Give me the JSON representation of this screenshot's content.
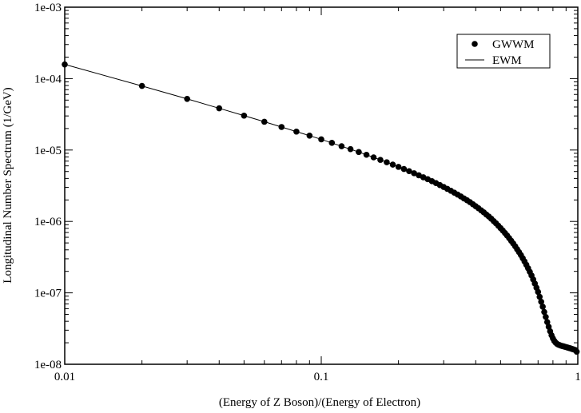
{
  "chart_data": {
    "type": "scatter",
    "title": "",
    "xlabel": "(Energy of Z Boson)/(Energy of Electron)",
    "ylabel": "Longitudinal Number Spectrum (1/GeV)",
    "xscale": "log",
    "yscale": "log",
    "xlim": [
      0.01,
      1
    ],
    "ylim": [
      1e-08,
      0.001
    ],
    "x_ticks": [
      {
        "value": 0.01,
        "label": "0.01"
      },
      {
        "value": 0.1,
        "label": "0.1"
      },
      {
        "value": 1,
        "label": "1"
      }
    ],
    "y_ticks": [
      {
        "value": 1e-08,
        "label": "1e-08"
      },
      {
        "value": 1e-07,
        "label": "1e-07"
      },
      {
        "value": 1e-06,
        "label": "1e-06"
      },
      {
        "value": 1e-05,
        "label": "1e-05"
      },
      {
        "value": 0.0001,
        "label": "1e-04"
      },
      {
        "value": 0.001,
        "label": "1e-03"
      }
    ],
    "grid": false,
    "legend_position": "top-right",
    "series": [
      {
        "name": "GWWM",
        "style": "markers",
        "marker": "filled-circle",
        "color": "#000000",
        "x": [
          0.01,
          0.02,
          0.03,
          0.04,
          0.05,
          0.06,
          0.07,
          0.08,
          0.09,
          0.1,
          0.11,
          0.12,
          0.13,
          0.14,
          0.15,
          0.16,
          0.17,
          0.18,
          0.19,
          0.2,
          0.21,
          0.22,
          0.23,
          0.24,
          0.25,
          0.26,
          0.27,
          0.28,
          0.29,
          0.3,
          0.31,
          0.32,
          0.33,
          0.34,
          0.35,
          0.36,
          0.37,
          0.38,
          0.39,
          0.4,
          0.41,
          0.42,
          0.43,
          0.44,
          0.45,
          0.46,
          0.47,
          0.48,
          0.49,
          0.5,
          0.51,
          0.52,
          0.53,
          0.54,
          0.55,
          0.56,
          0.57,
          0.58,
          0.59,
          0.6,
          0.61,
          0.62,
          0.63,
          0.64,
          0.65,
          0.66,
          0.67,
          0.68,
          0.69,
          0.7,
          0.71,
          0.72,
          0.73,
          0.74,
          0.75,
          0.76,
          0.77,
          0.78,
          0.79,
          0.8,
          0.81,
          0.82,
          0.83,
          0.84,
          0.85,
          0.86,
          0.87,
          0.88,
          0.89,
          0.9,
          0.91,
          0.92,
          0.93,
          0.94,
          0.95,
          0.96,
          0.97,
          0.98,
          0.99
        ],
        "y": [
          0.000158,
          7.89e-05,
          5.2e-05,
          3.84e-05,
          3.03e-05,
          2.49e-05,
          2.1e-05,
          1.81e-05,
          1.59e-05,
          1.41e-05,
          1.26e-05,
          1.13e-05,
          1.03e-05,
          9.37e-06,
          8.58e-06,
          7.89e-06,
          7.28e-06,
          6.74e-06,
          6.25e-06,
          5.81e-06,
          5.42e-06,
          5.06e-06,
          4.73e-06,
          4.43e-06,
          4.15e-06,
          3.9e-06,
          3.66e-06,
          3.44e-06,
          3.23e-06,
          3.04e-06,
          2.86e-06,
          2.69e-06,
          2.53e-06,
          2.38e-06,
          2.24e-06,
          2.1e-06,
          1.98e-06,
          1.86e-06,
          1.74e-06,
          1.63e-06,
          1.53e-06,
          1.43e-06,
          1.34e-06,
          1.25e-06,
          1.17e-06,
          1.09e-06,
          1.01e-06,
          9.4e-07,
          8.72e-07,
          8.07e-07,
          7.46e-07,
          6.89e-07,
          6.35e-07,
          5.84e-07,
          5.36e-07,
          4.91e-07,
          4.49e-07,
          4.09e-07,
          3.72e-07,
          3.38e-07,
          3.05e-07,
          2.75e-07,
          2.47e-07,
          2.21e-07,
          1.97e-07,
          1.75e-07,
          1.54e-07,
          1.35e-07,
          1.18e-07,
          1.03e-07,
          8.8e-08,
          7.5e-08,
          6.4e-08,
          5.4e-08,
          4.6e-08,
          3.9e-08,
          3.35e-08,
          2.9e-08,
          2.55e-08,
          2.3e-08,
          2.12e-08,
          2.01e-08,
          1.93e-08,
          1.88e-08,
          1.85e-08,
          1.82e-08,
          1.8e-08,
          1.78e-08,
          1.76e-08,
          1.74e-08,
          1.72e-08,
          1.7e-08,
          1.68e-08,
          1.66e-08,
          1.64e-08,
          1.62e-08,
          1.6e-08,
          1.58e-08,
          1.5e-08
        ]
      },
      {
        "name": "EWM",
        "style": "line",
        "color": "#000000",
        "x": [
          0.01,
          0.02,
          0.03,
          0.04,
          0.05,
          0.06,
          0.07,
          0.08,
          0.09,
          0.1,
          0.12,
          0.14,
          0.16,
          0.18,
          0.2,
          0.25,
          0.3,
          0.35,
          0.4,
          0.45,
          0.5,
          0.55,
          0.6,
          0.65,
          0.7,
          0.75,
          0.8,
          0.85,
          0.9,
          0.93,
          0.95,
          0.96,
          0.97,
          0.98,
          0.99
        ],
        "y": [
          0.000158,
          7.89e-05,
          5.2e-05,
          3.84e-05,
          3.03e-05,
          2.49e-05,
          2.1e-05,
          1.81e-05,
          1.59e-05,
          1.41e-05,
          1.13e-05,
          9.37e-06,
          7.89e-06,
          6.74e-06,
          5.81e-06,
          4.15e-06,
          3.04e-06,
          2.24e-06,
          1.63e-06,
          1.17e-06,
          8.07e-07,
          5.36e-07,
          3.38e-07,
          1.97e-07,
          1.03e-07,
          4.6e-08,
          2.3e-08,
          1.85e-08,
          1.74e-08,
          1.68e-08,
          1.64e-08,
          1.62e-08,
          1.6e-08,
          1.58e-08,
          1.5e-08
        ]
      }
    ]
  }
}
